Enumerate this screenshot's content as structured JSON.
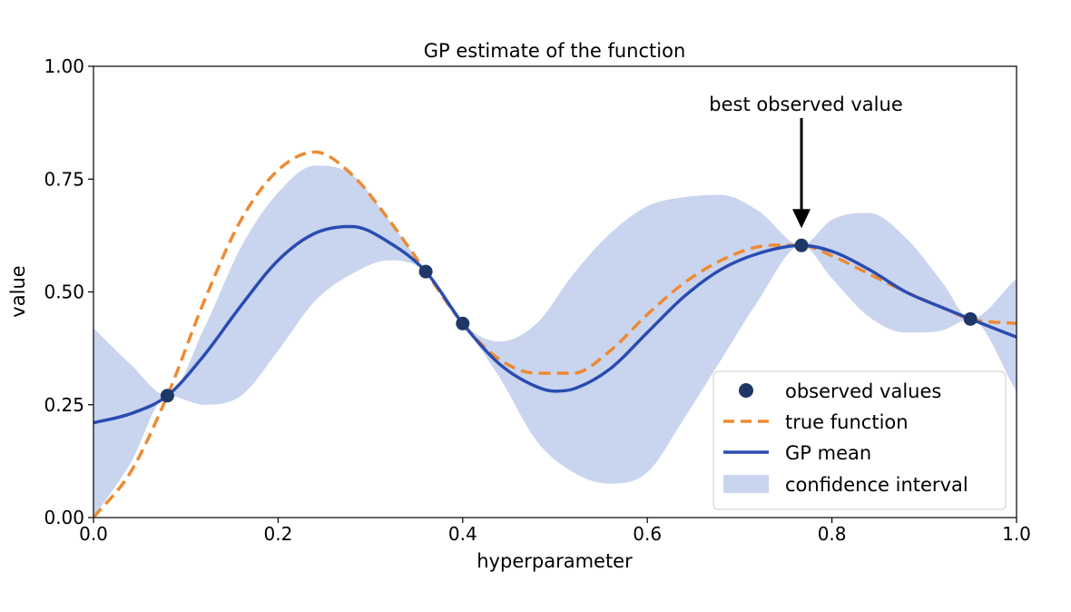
{
  "chart_data": {
    "type": "line",
    "title": "GP estimate of the function",
    "xlabel": "hyperparameter",
    "ylabel": "value",
    "xlim": [
      0.0,
      1.0
    ],
    "ylim": [
      0.0,
      1.0
    ],
    "xticks": [
      "0.0",
      "0.2",
      "0.4",
      "0.6",
      "0.8",
      "1.0"
    ],
    "yticks": [
      "0.00",
      "0.25",
      "0.50",
      "0.75",
      "1.00"
    ],
    "grid": false,
    "legend_position": "lower-right",
    "annotation": {
      "text": "best observed value",
      "x": 0.767,
      "y": 0.603
    },
    "series": [
      {
        "name": "observed values",
        "kind": "scatter",
        "color": "#1f3766",
        "x": [
          0.08,
          0.36,
          0.4,
          0.767,
          0.95
        ],
        "y": [
          0.27,
          0.545,
          0.43,
          0.603,
          0.44
        ]
      },
      {
        "name": "true function",
        "kind": "dashed-line",
        "color": "#ee8a32",
        "x": [
          0.0,
          0.04,
          0.08,
          0.12,
          0.16,
          0.2,
          0.24,
          0.28,
          0.32,
          0.36,
          0.4,
          0.44,
          0.48,
          0.52,
          0.56,
          0.6,
          0.64,
          0.68,
          0.72,
          0.767,
          0.8,
          0.84,
          0.88,
          0.92,
          0.95,
          1.0
        ],
        "y": [
          0.0,
          0.1,
          0.27,
          0.48,
          0.66,
          0.77,
          0.81,
          0.76,
          0.66,
          0.545,
          0.43,
          0.35,
          0.32,
          0.32,
          0.37,
          0.45,
          0.52,
          0.57,
          0.6,
          0.603,
          0.58,
          0.54,
          0.5,
          0.465,
          0.44,
          0.43
        ]
      },
      {
        "name": "GP mean",
        "kind": "line",
        "color": "#2a4cb0",
        "x": [
          0.0,
          0.04,
          0.08,
          0.12,
          0.16,
          0.2,
          0.24,
          0.28,
          0.32,
          0.36,
          0.4,
          0.44,
          0.48,
          0.5,
          0.52,
          0.56,
          0.6,
          0.64,
          0.68,
          0.72,
          0.767,
          0.8,
          0.84,
          0.88,
          0.92,
          0.95,
          1.0
        ],
        "y": [
          0.21,
          0.23,
          0.27,
          0.36,
          0.47,
          0.57,
          0.63,
          0.645,
          0.61,
          0.545,
          0.43,
          0.34,
          0.29,
          0.28,
          0.285,
          0.33,
          0.41,
          0.49,
          0.55,
          0.585,
          0.603,
          0.59,
          0.55,
          0.5,
          0.465,
          0.44,
          0.4
        ]
      },
      {
        "name": "confidence interval",
        "kind": "band",
        "color": "#c9d5ef",
        "x": [
          0.0,
          0.04,
          0.08,
          0.12,
          0.16,
          0.2,
          0.24,
          0.28,
          0.32,
          0.36,
          0.4,
          0.44,
          0.48,
          0.52,
          0.56,
          0.6,
          0.64,
          0.68,
          0.72,
          0.767,
          0.8,
          0.84,
          0.88,
          0.92,
          0.95,
          1.0
        ],
        "upper": [
          0.42,
          0.34,
          0.27,
          0.42,
          0.6,
          0.72,
          0.78,
          0.76,
          0.66,
          0.545,
          0.43,
          0.39,
          0.43,
          0.54,
          0.63,
          0.69,
          0.71,
          0.715,
          0.68,
          0.603,
          0.66,
          0.675,
          0.62,
          0.52,
          0.44,
          0.53
        ],
        "lower": [
          0.0,
          0.12,
          0.27,
          0.25,
          0.27,
          0.37,
          0.48,
          0.54,
          0.57,
          0.545,
          0.43,
          0.31,
          0.17,
          0.1,
          0.075,
          0.1,
          0.22,
          0.35,
          0.48,
          0.603,
          0.53,
          0.445,
          0.41,
          0.415,
          0.44,
          0.28
        ]
      }
    ]
  }
}
